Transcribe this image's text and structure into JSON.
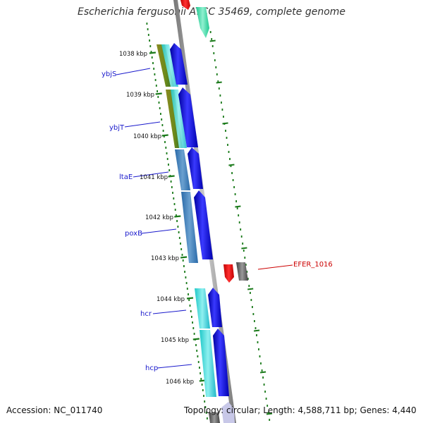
{
  "title": "Escherichia fergusonii ATCC 35469, complete genome",
  "footer": {
    "accession": "Accession: NC_011740",
    "summary": "Topology: circular; Length: 4,588,711 bp; Genes: 4,440"
  },
  "ticks": [
    "1038 kbp",
    "1039 kbp",
    "1040 kbp",
    "1041 kbp",
    "1042 kbp",
    "1043 kbp",
    "1044 kbp",
    "1045 kbp",
    "1046 kbp"
  ],
  "gene_labels": {
    "ybjS": "ybjS",
    "ybjT": "ybjT",
    "ltaE": "ltaE",
    "poxB": "poxB",
    "hcr": "hcr",
    "hcp": "hcp",
    "efer": "EFER_1016"
  },
  "colors": {
    "forward_cds": "#0000cc",
    "reverse_red": "#ff0000",
    "reverse_gray": "#555555",
    "backbone": "#888888",
    "tick_green": "#1a7a1a",
    "label_blue": "#1a1acc",
    "label_red": "#cc0000"
  }
}
